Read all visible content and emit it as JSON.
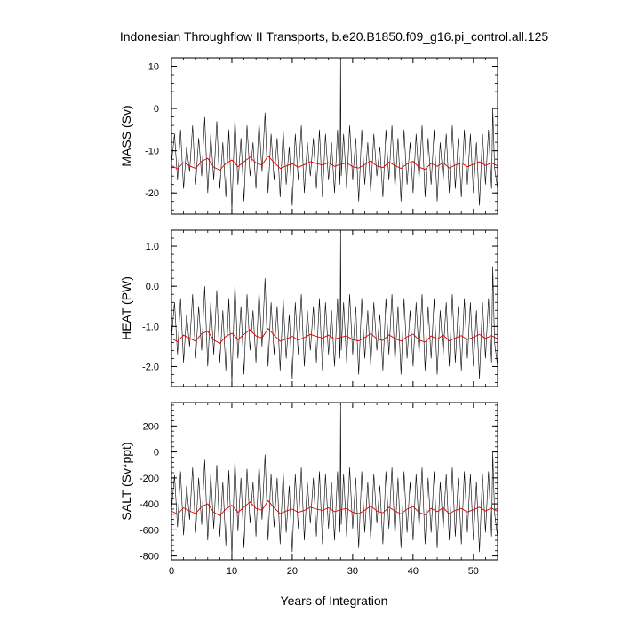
{
  "title": "Indonesian Throughflow II Transports, b.e20.B1850.f09_g16.pi_control.all.125",
  "xlabel": "Years of Integration",
  "colors": {
    "monthly": "#000000",
    "annual": "#e00000"
  },
  "chart_data": [
    {
      "type": "line",
      "ylabel": "MASS (Sv)",
      "xlim": [
        0,
        54
      ],
      "ylim": [
        -25,
        12
      ],
      "yticks": [
        10,
        0,
        -10,
        -20
      ],
      "ytick_labels": [
        "10",
        "0",
        "-10",
        "-20"
      ],
      "xticks": [
        0,
        10,
        20,
        30,
        40,
        50
      ],
      "series": [
        {
          "kind": "monthly",
          "x": [
            0,
            0.5,
            1,
            1.5,
            2,
            2.5,
            3,
            3.5,
            4,
            4.5,
            5,
            5.5,
            6,
            6.5,
            7,
            7.5,
            8,
            8.5,
            9,
            9.5,
            10,
            10.5,
            11,
            11.5,
            12,
            12.5,
            13,
            13.5,
            14,
            14.5,
            15,
            15.5,
            16,
            16.5,
            17,
            17.5,
            18,
            18.5,
            19,
            19.5,
            20,
            20.5,
            21,
            21.5,
            22,
            22.5,
            23,
            23.5,
            24,
            24.5,
            25,
            25.5,
            26,
            26.5,
            27,
            27.5,
            27.9,
            28.0,
            28.1,
            28.5,
            29,
            29.5,
            30,
            30.5,
            31,
            31.5,
            32,
            32.5,
            33,
            33.5,
            34,
            34.5,
            35,
            35.5,
            36,
            36.5,
            37,
            37.5,
            38,
            38.5,
            39,
            39.5,
            40,
            40.5,
            41,
            41.5,
            42,
            42.5,
            43,
            43.5,
            44,
            44.5,
            45,
            45.5,
            46,
            46.5,
            47,
            47.5,
            48,
            48.5,
            49,
            49.5,
            50,
            50.5,
            51,
            51.5,
            52,
            52.5,
            53,
            53.2,
            53.5,
            54
          ],
          "y": [
            -13,
            -6,
            -17,
            -5,
            -19,
            -9,
            -15,
            -4,
            -18,
            -7,
            -16,
            -2,
            -20,
            -6,
            -17,
            -3,
            -19,
            -8,
            -21,
            -5,
            -24,
            -2,
            -18,
            -7,
            -22,
            -4,
            -16,
            -8,
            -19,
            -3,
            -15,
            -1,
            -20,
            -6,
            -17,
            -7,
            -21,
            -5,
            -18,
            -9,
            -23,
            -6,
            -17,
            -4,
            -20,
            -8,
            -16,
            -7,
            -19,
            -5,
            -21,
            -6,
            -17,
            -8,
            -20,
            -5,
            -18,
            12,
            -16,
            -6,
            -19,
            -4,
            -17,
            -7,
            -22,
            -5,
            -18,
            -8,
            -20,
            -6,
            -16,
            -9,
            -21,
            -5,
            -17,
            -4,
            -19,
            -7,
            -22,
            -5,
            -18,
            -8,
            -20,
            -6,
            -17,
            -4,
            -21,
            -7,
            -18,
            -5,
            -22,
            -8,
            -17,
            -6,
            -20,
            -4,
            -19,
            -7,
            -21,
            -5,
            -18,
            -6,
            -20,
            -8,
            -23,
            -6,
            -18,
            -5,
            -19,
            0,
            -14,
            -19
          ]
        },
        {
          "kind": "annual",
          "x": [
            0,
            1,
            2,
            3,
            4,
            5,
            6,
            7,
            8,
            9,
            10,
            11,
            12,
            13,
            14,
            15,
            16,
            17,
            18,
            19,
            20,
            21,
            22,
            23,
            24,
            25,
            26,
            27,
            28,
            29,
            30,
            31,
            32,
            33,
            34,
            35,
            36,
            37,
            38,
            39,
            40,
            41,
            42,
            43,
            44,
            45,
            46,
            47,
            48,
            49,
            50,
            51,
            52,
            53,
            54
          ],
          "y": [
            -13.5,
            -14.3,
            -12.8,
            -13.6,
            -14.2,
            -12.5,
            -11.8,
            -13.9,
            -14.6,
            -13.0,
            -12.2,
            -13.8,
            -12.6,
            -11.5,
            -12.9,
            -13.4,
            -11.2,
            -12.8,
            -14.2,
            -13.6,
            -13.1,
            -13.9,
            -13.3,
            -12.6,
            -13.0,
            -13.4,
            -12.8,
            -13.7,
            -13.2,
            -12.9,
            -13.8,
            -14.1,
            -13.3,
            -12.4,
            -13.6,
            -14.0,
            -12.7,
            -13.5,
            -14.2,
            -13.1,
            -12.5,
            -13.9,
            -14.4,
            -13.0,
            -13.7,
            -12.8,
            -14.1,
            -13.4,
            -12.9,
            -13.8,
            -13.2,
            -12.6,
            -13.5,
            -12.9,
            -13.6
          ]
        }
      ]
    },
    {
      "type": "line",
      "ylabel": "HEAT (PW)",
      "xlim": [
        0,
        54
      ],
      "ylim": [
        -2.5,
        1.4
      ],
      "yticks": [
        1.0,
        0.0,
        -1.0,
        -2.0
      ],
      "ytick_labels": [
        "1.0",
        "0.0",
        "-1.0",
        "-2.0"
      ],
      "xticks": [
        0,
        10,
        20,
        30,
        40,
        50
      ],
      "series": [
        {
          "kind": "monthly",
          "x": [
            0,
            0.5,
            1,
            1.5,
            2,
            2.5,
            3,
            3.5,
            4,
            4.5,
            5,
            5.5,
            6,
            6.5,
            7,
            7.5,
            8,
            8.5,
            9,
            9.5,
            10,
            10.5,
            11,
            11.5,
            12,
            12.5,
            13,
            13.5,
            14,
            14.5,
            15,
            15.5,
            16,
            16.5,
            17,
            17.5,
            18,
            18.5,
            19,
            19.5,
            20,
            20.5,
            21,
            21.5,
            22,
            22.5,
            23,
            23.5,
            24,
            24.5,
            25,
            25.5,
            26,
            26.5,
            27,
            27.5,
            27.9,
            28.0,
            28.1,
            28.5,
            29,
            29.5,
            30,
            30.5,
            31,
            31.5,
            32,
            32.5,
            33,
            33.5,
            34,
            34.5,
            35,
            35.5,
            36,
            36.5,
            37,
            37.5,
            38,
            38.5,
            39,
            39.5,
            40,
            40.5,
            41,
            41.5,
            42,
            42.5,
            43,
            43.5,
            44,
            44.5,
            45,
            45.5,
            46,
            46.5,
            47,
            47.5,
            48,
            48.5,
            49,
            49.5,
            50,
            50.5,
            51,
            51.5,
            52,
            52.5,
            53,
            53.2,
            53.5,
            54
          ],
          "y": [
            -1.3,
            -0.4,
            -1.7,
            -0.3,
            -1.9,
            -0.7,
            -1.5,
            -0.2,
            -1.8,
            -0.5,
            -1.6,
            0.0,
            -2.0,
            -0.4,
            -1.7,
            -0.1,
            -1.9,
            -0.6,
            -2.1,
            -0.3,
            -2.4,
            0.1,
            -1.8,
            -0.5,
            -2.2,
            -0.2,
            -1.6,
            -0.6,
            -1.9,
            -0.1,
            -1.5,
            0.2,
            -2.0,
            -0.4,
            -1.7,
            -0.5,
            -2.1,
            -0.3,
            -1.8,
            -0.7,
            -2.3,
            -0.4,
            -1.7,
            -0.2,
            -2.0,
            -0.6,
            -1.6,
            -0.5,
            -1.9,
            -0.3,
            -2.1,
            -0.4,
            -1.7,
            -0.6,
            -2.0,
            -0.3,
            -1.8,
            1.35,
            -1.6,
            -0.4,
            -1.9,
            -0.2,
            -1.7,
            -0.5,
            -2.2,
            -0.3,
            -1.8,
            -0.6,
            -2.0,
            -0.4,
            -1.6,
            -0.7,
            -2.1,
            -0.3,
            -1.7,
            -0.2,
            -1.9,
            -0.5,
            -2.2,
            -0.3,
            -1.8,
            -0.6,
            -2.0,
            -0.4,
            -1.7,
            -0.2,
            -2.1,
            -0.5,
            -1.8,
            -0.3,
            -2.2,
            -0.6,
            -1.7,
            -0.4,
            -2.0,
            -0.2,
            -1.9,
            -0.5,
            -2.1,
            -0.3,
            -1.8,
            -0.4,
            -2.0,
            -0.6,
            -2.3,
            -0.4,
            -1.8,
            -0.3,
            -1.9,
            0.5,
            -1.4,
            -2.0
          ]
        },
        {
          "kind": "annual",
          "x": [
            0,
            1,
            2,
            3,
            4,
            5,
            6,
            7,
            8,
            9,
            10,
            11,
            12,
            13,
            14,
            15,
            16,
            17,
            18,
            19,
            20,
            21,
            22,
            23,
            24,
            25,
            26,
            27,
            28,
            29,
            30,
            31,
            32,
            33,
            34,
            35,
            36,
            37,
            38,
            39,
            40,
            41,
            42,
            43,
            44,
            45,
            46,
            47,
            48,
            49,
            50,
            51,
            52,
            53,
            54
          ],
          "y": [
            -1.3,
            -1.38,
            -1.22,
            -1.3,
            -1.37,
            -1.18,
            -1.12,
            -1.34,
            -1.42,
            -1.25,
            -1.17,
            -1.33,
            -1.2,
            -1.08,
            -1.24,
            -1.29,
            -1.05,
            -1.22,
            -1.37,
            -1.31,
            -1.25,
            -1.34,
            -1.28,
            -1.2,
            -1.25,
            -1.29,
            -1.22,
            -1.32,
            -1.27,
            -1.24,
            -1.33,
            -1.36,
            -1.28,
            -1.18,
            -1.31,
            -1.35,
            -1.21,
            -1.3,
            -1.37,
            -1.26,
            -1.19,
            -1.34,
            -1.39,
            -1.24,
            -1.32,
            -1.22,
            -1.36,
            -1.29,
            -1.23,
            -1.33,
            -1.27,
            -1.2,
            -1.3,
            -1.23,
            -1.31
          ]
        }
      ]
    },
    {
      "type": "line",
      "ylabel": "SALT (Sv*ppt)",
      "xlim": [
        0,
        54
      ],
      "ylim": [
        -830,
        380
      ],
      "yticks": [
        200,
        0,
        -200,
        -400,
        -600,
        -800
      ],
      "ytick_labels": [
        "200",
        "0",
        "-200",
        "-400",
        "-600",
        "-800"
      ],
      "xticks": [
        0,
        10,
        20,
        30,
        40,
        50
      ],
      "xtick_labels": [
        "0",
        "10",
        "20",
        "30",
        "40",
        "50"
      ],
      "series": [
        {
          "kind": "monthly",
          "x": [
            0,
            0.5,
            1,
            1.5,
            2,
            2.5,
            3,
            3.5,
            4,
            4.5,
            5,
            5.5,
            6,
            6.5,
            7,
            7.5,
            8,
            8.5,
            9,
            9.5,
            10,
            10.5,
            11,
            11.5,
            12,
            12.5,
            13,
            13.5,
            14,
            14.5,
            15,
            15.5,
            16,
            16.5,
            17,
            17.5,
            18,
            18.5,
            19,
            19.5,
            20,
            20.5,
            21,
            21.5,
            22,
            22.5,
            23,
            23.5,
            24,
            24.5,
            25,
            25.5,
            26,
            26.5,
            27,
            27.5,
            27.9,
            28.0,
            28.1,
            28.5,
            29,
            29.5,
            30,
            30.5,
            31,
            31.5,
            32,
            32.5,
            33,
            33.5,
            34,
            34.5,
            35,
            35.5,
            36,
            36.5,
            37,
            37.5,
            38,
            38.5,
            39,
            39.5,
            40,
            40.5,
            41,
            41.5,
            42,
            42.5,
            43,
            43.5,
            44,
            44.5,
            45,
            45.5,
            46,
            46.5,
            47,
            47.5,
            48,
            48.5,
            49,
            49.5,
            50,
            50.5,
            51,
            51.5,
            52,
            52.5,
            53,
            53.2,
            53.5,
            54
          ],
          "y": [
            -450,
            -180,
            -580,
            -150,
            -640,
            -260,
            -520,
            -120,
            -620,
            -200,
            -560,
            -60,
            -680,
            -170,
            -590,
            -100,
            -650,
            -230,
            -720,
            -140,
            -800,
            -50,
            -610,
            -200,
            -740,
            -130,
            -550,
            -230,
            -650,
            -90,
            -520,
            -20,
            -680,
            -170,
            -580,
            -200,
            -710,
            -150,
            -620,
            -260,
            -770,
            -170,
            -590,
            -120,
            -680,
            -230,
            -550,
            -200,
            -650,
            -150,
            -710,
            -170,
            -590,
            -230,
            -680,
            -150,
            -620,
            380,
            -560,
            -170,
            -650,
            -120,
            -590,
            -200,
            -740,
            -150,
            -620,
            -230,
            -680,
            -170,
            -550,
            -260,
            -710,
            -150,
            -590,
            -120,
            -650,
            -200,
            -740,
            -150,
            -620,
            -230,
            -680,
            -170,
            -590,
            -120,
            -710,
            -200,
            -620,
            -150,
            -740,
            -230,
            -590,
            -170,
            -680,
            -120,
            -650,
            -200,
            -710,
            -150,
            -620,
            -170,
            -680,
            -230,
            -770,
            -170,
            -620,
            -150,
            -650,
            0,
            -470,
            -660
          ]
        },
        {
          "kind": "annual",
          "x": [
            0,
            1,
            2,
            3,
            4,
            5,
            6,
            7,
            8,
            9,
            10,
            11,
            12,
            13,
            14,
            15,
            16,
            17,
            18,
            19,
            20,
            21,
            22,
            23,
            24,
            25,
            26,
            27,
            28,
            29,
            30,
            31,
            32,
            33,
            34,
            35,
            36,
            37,
            38,
            39,
            40,
            41,
            42,
            43,
            44,
            45,
            46,
            47,
            48,
            49,
            50,
            51,
            52,
            53,
            54
          ],
          "y": [
            -455,
            -480,
            -430,
            -455,
            -475,
            -420,
            -400,
            -465,
            -490,
            -440,
            -410,
            -465,
            -425,
            -385,
            -435,
            -450,
            -375,
            -430,
            -475,
            -455,
            -440,
            -465,
            -450,
            -425,
            -440,
            -450,
            -430,
            -460,
            -445,
            -435,
            -465,
            -475,
            -450,
            -415,
            -455,
            -470,
            -425,
            -455,
            -478,
            -440,
            -420,
            -465,
            -485,
            -435,
            -460,
            -430,
            -475,
            -450,
            -435,
            -462,
            -445,
            -425,
            -455,
            -432,
            -458
          ]
        }
      ]
    }
  ]
}
